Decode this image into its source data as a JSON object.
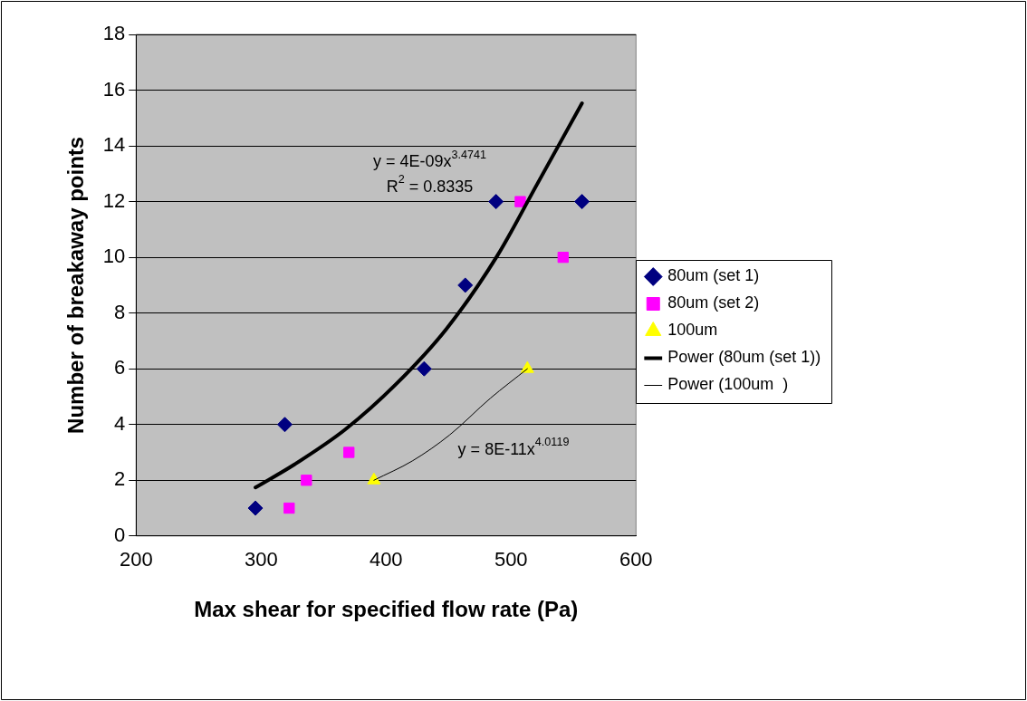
{
  "chart_data": {
    "type": "scatter",
    "xlabel": "Max shear for specified flow rate (Pa)",
    "ylabel": "Number of breakaway points",
    "xlim": [
      200,
      600
    ],
    "xticks": [
      200,
      300,
      400,
      500,
      600
    ],
    "ylim": [
      0,
      18
    ],
    "yticks": [
      0,
      2,
      4,
      6,
      8,
      10,
      12,
      14,
      16,
      18
    ],
    "grid": "y",
    "legend": "right",
    "series": [
      {
        "name": "80um (set 1)",
        "marker": "diamond",
        "color": "#000080",
        "x": [
          295.5,
          319,
          430.5,
          463.4,
          488,
          556.8
        ],
        "values": [
          1,
          4,
          6,
          9,
          12,
          12
        ]
      },
      {
        "name": "80um (set 2)",
        "marker": "square",
        "color": "#ff00ff",
        "x": [
          322.5,
          336.3,
          370.3,
          507.4,
          541.7
        ],
        "values": [
          1,
          2,
          3,
          12,
          10
        ]
      },
      {
        "name": "100um",
        "marker": "triangle",
        "color": "#ffff00",
        "x": [
          390.3,
          513.1
        ],
        "values": [
          2,
          6
        ]
      },
      {
        "name": "Power (80um (set 1))",
        "type": "line",
        "marker": "none",
        "color": "#000000",
        "x": [
          295.5,
          326.8,
          367.3,
          407.8,
          448.3,
          488.8,
          521.2,
          556.8
        ],
        "values": [
          1.74,
          2.57,
          3.82,
          5.44,
          7.43,
          10.04,
          12.65,
          15.53
        ]
      },
      {
        "name": "Power (100um  )",
        "type": "line",
        "marker": "none",
        "color": "#000000",
        "x": [
          390.3,
          421.3,
          451,
          483.4,
          513.1
        ],
        "values": [
          2,
          2.7,
          3.63,
          4.94,
          6
        ]
      }
    ],
    "annotations": [
      "y = 4E-09x$^{3.4741}$",
      "R$^{2}$ = 0.8335",
      "y = 8E-11x$^{4.0119}$"
    ]
  }
}
